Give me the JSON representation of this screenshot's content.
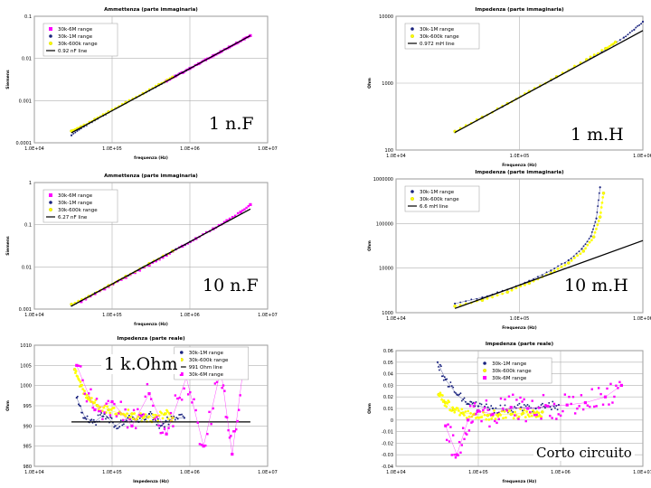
{
  "slide": {
    "labels": [
      "1 n.F",
      "1 m.H",
      "10 n.F",
      "10 m.H",
      "1 k.Ohm",
      "Corto circuito"
    ]
  },
  "chart_data": [
    {
      "type": "scatter",
      "title": "Ammettenza (parte immaginaria)",
      "xlabel": "frequenza (Hz)",
      "ylabel": "Siemens",
      "xscale": "log",
      "yscale": "log",
      "xlim": [
        10000,
        10000000
      ],
      "ylim": [
        0.0001,
        0.1
      ],
      "xticks": [
        "1.0E+04",
        "1.0E+05",
        "1.0E+06",
        "1.0E+07"
      ],
      "yticks": [
        "0.0001",
        "0.001",
        "0.01",
        "0.1"
      ],
      "series": [
        {
          "name": "30k-6M range",
          "kind": "points",
          "color": "#ff00ff",
          "x": [
            500000,
            650000,
            800000,
            1000000,
            1300000,
            1600000,
            2000000,
            2500000,
            3200000,
            4000000,
            5000000,
            6000000
          ],
          "y": [
            0.0029,
            0.0038,
            0.0046,
            0.0058,
            0.0075,
            0.0093,
            0.0116,
            0.0145,
            0.0186,
            0.0232,
            0.029,
            0.0348
          ]
        },
        {
          "name": "30k-1M range",
          "kind": "points",
          "color": "#1a237e",
          "x": [
            30000,
            40000,
            60000,
            90000,
            150000,
            250000,
            400000,
            600000,
            1000000
          ],
          "y": [
            0.00015,
            0.00022,
            0.00034,
            0.00052,
            0.00087,
            0.00145,
            0.0023,
            0.0035,
            0.0058
          ]
        },
        {
          "name": "30k-600k range",
          "kind": "points",
          "color": "#ffff00",
          "x": [
            30000,
            40000,
            60000,
            90000,
            150000,
            250000,
            400000,
            600000
          ],
          "y": [
            0.00019,
            0.00024,
            0.00036,
            0.00054,
            0.0009,
            0.00147,
            0.0024,
            0.0036
          ]
        },
        {
          "name": "0.92 nF line",
          "kind": "line",
          "color": "#000000",
          "x": [
            30000,
            6000000
          ],
          "y": [
            0.000173,
            0.0347
          ]
        }
      ]
    },
    {
      "type": "scatter",
      "title": "Impedenza (parte immaginaria)",
      "xlabel": "Frequenza (Hz)",
      "ylabel": "Ohm",
      "xscale": "log",
      "yscale": "log",
      "xlim": [
        10000,
        1000000
      ],
      "ylim": [
        100,
        10000
      ],
      "xticks": [
        "1.0E+04",
        "1.0E+05",
        "1.0E+06"
      ],
      "yticks": [
        "100",
        "1000",
        "10000"
      ],
      "series": [
        {
          "name": "30k-1M range",
          "kind": "points",
          "color": "#1a237e",
          "x": [
            30000,
            50000,
            80000,
            120000,
            200000,
            350000,
            500000,
            700000,
            850000,
            1000000
          ],
          "y": [
            185,
            305,
            490,
            740,
            1230,
            2180,
            3200,
            4800,
            6300,
            8300
          ]
        },
        {
          "name": "30k-600k range",
          "kind": "points",
          "color": "#ffff00",
          "x": [
            30000,
            50000,
            80000,
            120000,
            200000,
            350000,
            500000,
            600000
          ],
          "y": [
            190,
            310,
            495,
            750,
            1250,
            2250,
            3300,
            4100
          ]
        },
        {
          "name": "0.972 mH line",
          "kind": "line",
          "color": "#000000",
          "x": [
            30000,
            1000000
          ],
          "y": [
            183,
            6110
          ]
        }
      ]
    },
    {
      "type": "scatter",
      "title": "Ammettenza (parte immaginaria)",
      "xlabel": "frequenza (Hz)",
      "ylabel": "Siemens",
      "xscale": "log",
      "yscale": "log",
      "xlim": [
        10000,
        10000000
      ],
      "ylim": [
        0.001,
        1
      ],
      "xticks": [
        "1.0E+04",
        "1.0E+05",
        "1.0E+06",
        "1.0E+07"
      ],
      "yticks": [
        "0.001",
        "0.01",
        "0.1",
        "1"
      ],
      "series": [
        {
          "name": "30k-6M range",
          "kind": "points",
          "color": "#ff00ff",
          "x": [
            40000,
            80000,
            150000,
            300000,
            500000,
            800000,
            1200000,
            2000000,
            3000000,
            4500000,
            6000000
          ],
          "y": [
            0.0015,
            0.003,
            0.0056,
            0.011,
            0.019,
            0.031,
            0.047,
            0.08,
            0.125,
            0.2,
            0.3
          ]
        },
        {
          "name": "30k-1M range",
          "kind": "points",
          "color": "#1a237e",
          "x": [
            30000,
            60000,
            120000,
            250000,
            500000,
            1000000
          ],
          "y": [
            0.0012,
            0.0024,
            0.0047,
            0.0098,
            0.0197,
            0.0394
          ]
        },
        {
          "name": "30k-600k range",
          "kind": "points",
          "color": "#ffff00",
          "x": [
            30000,
            50000,
            90000,
            150000,
            300000,
            600000
          ],
          "y": [
            0.0013,
            0.002,
            0.0036,
            0.006,
            0.012,
            0.024
          ]
        },
        {
          "name": "6.27 nF line",
          "kind": "line",
          "color": "#000000",
          "x": [
            30000,
            6000000
          ],
          "y": [
            0.00118,
            0.236
          ]
        }
      ]
    },
    {
      "type": "scatter",
      "title": "Impedenza (parte immaginaria)",
      "xlabel": "Frequenza (Hz)",
      "ylabel": "Ohm",
      "xscale": "log",
      "yscale": "log",
      "xlim": [
        10000,
        1000000
      ],
      "ylim": [
        1000,
        1000000
      ],
      "xticks": [
        "1.0E+04",
        "1.0E+05",
        "1.0E+06"
      ],
      "yticks": [
        "1000",
        "10000",
        "100000",
        "1000000"
      ],
      "series": [
        {
          "name": "30k-1M range",
          "kind": "points",
          "color": "#1a237e",
          "x": [
            30000,
            50000,
            80000,
            120000,
            180000,
            250000,
            320000,
            380000,
            420000,
            450000
          ],
          "y": [
            1600,
            2200,
            3300,
            5200,
            8800,
            15000,
            27000,
            52000,
            130000,
            650000
          ]
        },
        {
          "name": "30k-600k range",
          "kind": "points",
          "color": "#ffff00",
          "x": [
            30000,
            50000,
            80000,
            120000,
            180000,
            250000,
            330000,
            400000,
            450000,
            480000
          ],
          "y": [
            1400,
            1900,
            2900,
            4600,
            7700,
            13000,
            24000,
            50000,
            140000,
            480000
          ]
        },
        {
          "name": "6.6 mH line",
          "kind": "line",
          "color": "#000000",
          "x": [
            30000,
            1000000
          ],
          "y": [
            1245,
            41500
          ]
        }
      ]
    },
    {
      "type": "scatter",
      "title": "Impedenza (parte reale)",
      "xlabel": "Impedenza (Hz)",
      "ylabel": "Ohm",
      "xscale": "log",
      "yscale": "linear",
      "xlim": [
        10000,
        10000000
      ],
      "ylim": [
        980,
        1010
      ],
      "xticks": [
        "1.0E+04",
        "1.0E+05",
        "1.0E+06",
        "1.0E+07"
      ],
      "yticks": [
        "980",
        "985",
        "990",
        "995",
        "1000",
        "1005",
        "1010"
      ],
      "series": [
        {
          "name": "30k-1M range",
          "kind": "points",
          "color": "#1a237e",
          "x": [
            35000,
            45000,
            60000,
            80000,
            110000,
            160000,
            220000,
            300000,
            420000,
            600000,
            850000
          ],
          "y": [
            997,
            992,
            991,
            993,
            990,
            992,
            991,
            993,
            990,
            992,
            992
          ]
        },
        {
          "name": "30k-600k range",
          "kind": "points",
          "color": "#ffff00",
          "x": [
            33000,
            40000,
            50000,
            65000,
            90000,
            130000,
            180000,
            250000,
            350000,
            480000,
            600000
          ],
          "y": [
            1004,
            1000,
            997,
            995,
            994,
            993,
            993,
            992,
            992,
            993,
            992
          ]
        },
        {
          "name": "991 Ohm line",
          "kind": "line",
          "color": "#000000",
          "x": [
            30000,
            6000000
          ],
          "y": [
            991,
            991
          ]
        },
        {
          "name": "30k-6M range",
          "kind": "points",
          "color": "#ff00ff",
          "x": [
            35000,
            60000,
            100000,
            180000,
            300000,
            500000,
            900000,
            1500000,
            2500000,
            3500000,
            5000000
          ],
          "y": [
            1005,
            994,
            996,
            990,
            998,
            988,
            1002,
            985,
            1004,
            983,
            1006
          ]
        }
      ]
    },
    {
      "type": "scatter",
      "title": "Impedenza (parte reale)",
      "xlabel": "frequenza (Hz)",
      "ylabel": "Ohm",
      "xscale": "log",
      "yscale": "linear",
      "xlim": [
        10000,
        10000000
      ],
      "ylim": [
        -0.04,
        0.06
      ],
      "xticks": [
        "1.0E+04",
        "1.0E+05",
        "1.0E+06",
        "1.0E+07"
      ],
      "yticks": [
        "-0.04",
        "-0.03",
        "-0.02",
        "-0.01",
        "0",
        "0.01",
        "0.02",
        "0.03",
        "0.04",
        "0.05",
        "0.06"
      ],
      "series": [
        {
          "name": "30k-1M range",
          "kind": "points",
          "color": "#1a237e",
          "x": [
            32000,
            40000,
            55000,
            75000,
            100000,
            150000,
            220000,
            330000,
            500000,
            700000,
            950000
          ],
          "y": [
            0.05,
            0.035,
            0.022,
            0.014,
            0.012,
            0.01,
            0.009,
            0.011,
            0.01,
            0.012,
            0.013
          ]
        },
        {
          "name": "30k-600k range",
          "kind": "points",
          "color": "#ffff00",
          "x": [
            33000,
            40000,
            50000,
            65000,
            90000,
            130000,
            180000,
            250000,
            350000,
            480000,
            600000
          ],
          "y": [
            0.022,
            0.015,
            0.009,
            0.006,
            0.005,
            0.004,
            0.005,
            0.005,
            0.006,
            0.006,
            0.007
          ]
        },
        {
          "name": "30k-6M range",
          "kind": "points",
          "color": "#ff00ff",
          "x": [
            40000,
            55000,
            75000,
            100000,
            150000,
            250000,
            400000,
            700000,
            1200000,
            2000000,
            3500000,
            5500000
          ],
          "y": [
            -0.005,
            -0.03,
            0.0,
            0.008,
            0.005,
            0.011,
            0.01,
            0.012,
            0.013,
            0.015,
            0.02,
            0.03
          ]
        }
      ]
    }
  ]
}
